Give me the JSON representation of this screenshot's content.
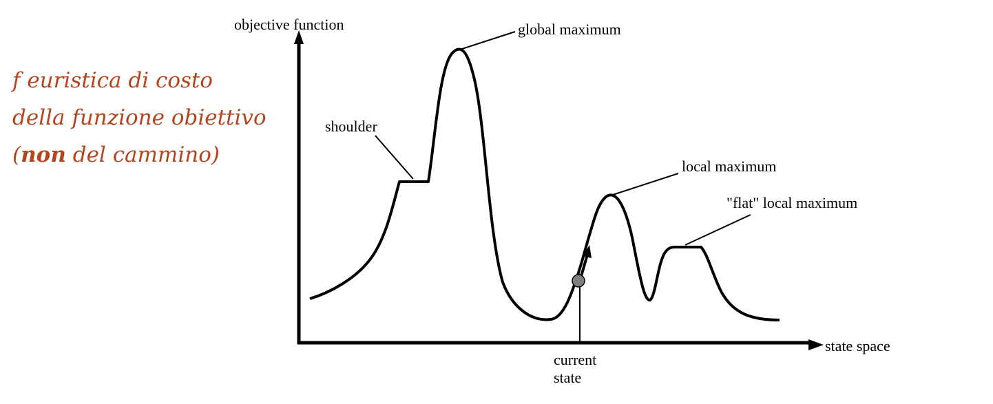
{
  "note": {
    "line1": "f euristica di costo",
    "line2": "della funzione obiettivo",
    "line3_open": "(",
    "line3_bold": "non",
    "line3_rest": " del cammino)"
  },
  "diagram": {
    "y_axis_label": "objective function",
    "x_axis_label": "state space",
    "labels": {
      "global_maximum": "global maximum",
      "shoulder": "shoulder",
      "local_maximum": "local maximum",
      "flat_local_maximum": "\"flat\" local maximum",
      "current_state_line1": "current",
      "current_state_line2": "state"
    },
    "colors": {
      "note_text": "#b5441f",
      "curve": "#000000",
      "current_state_marker": "#7f7f7f"
    }
  }
}
